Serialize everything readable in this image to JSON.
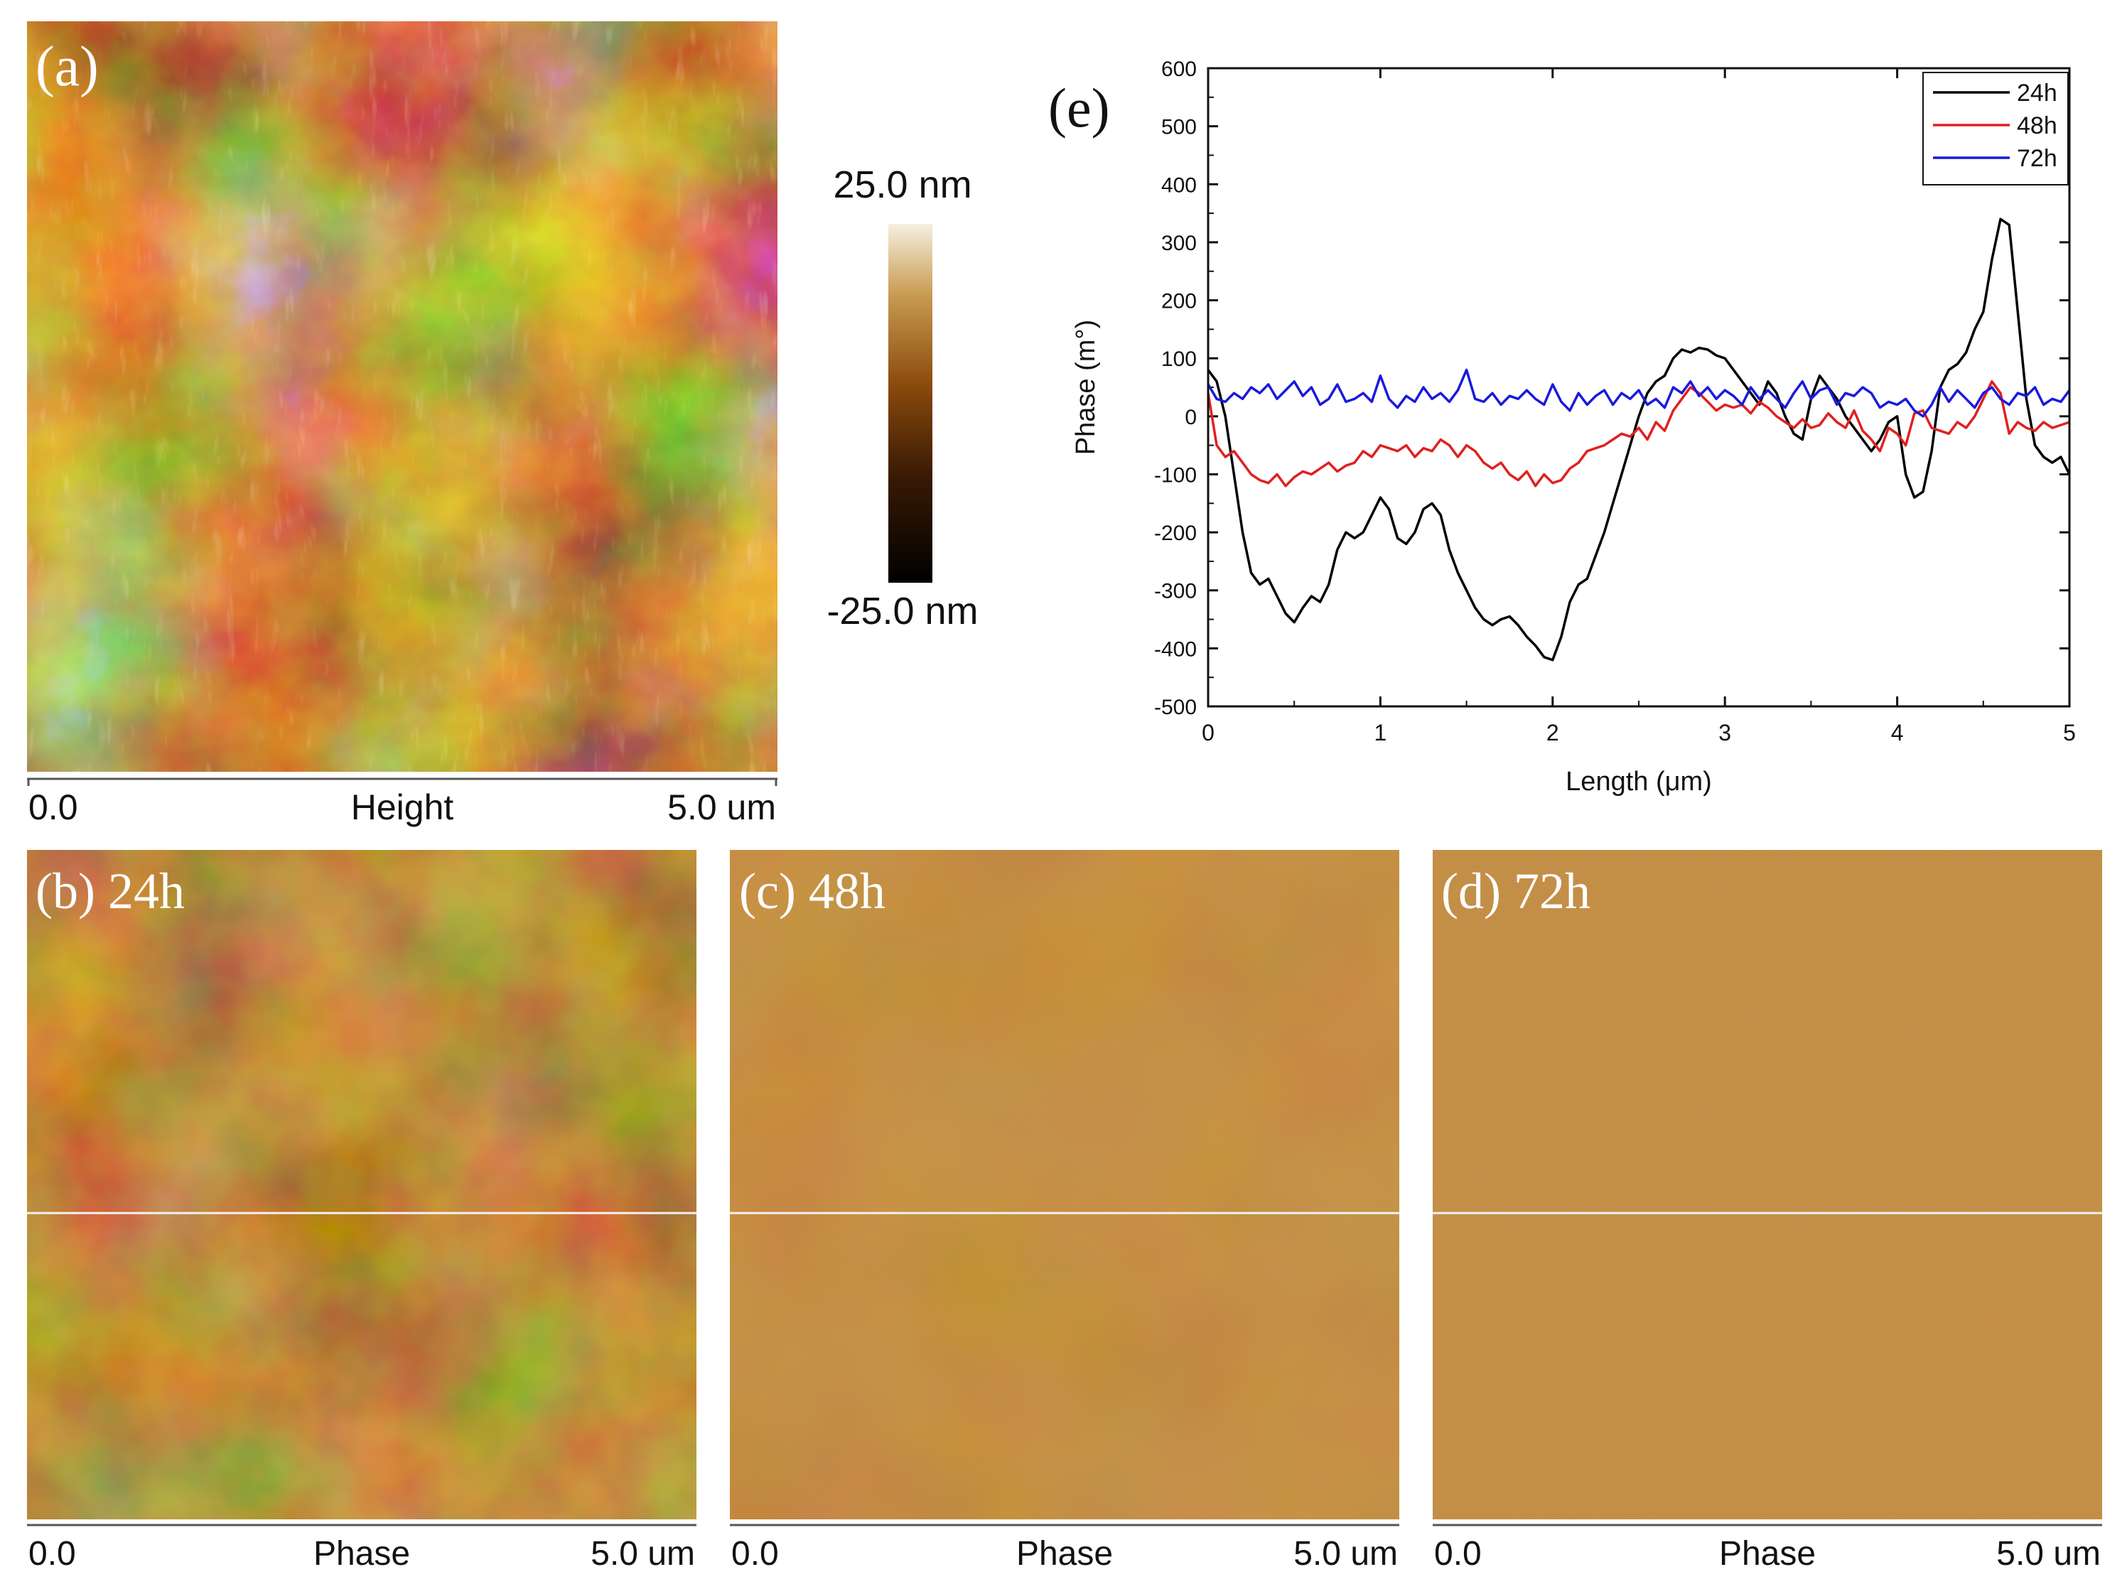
{
  "panel_a": {
    "label": "(a)",
    "scale_left": "0.0",
    "scale_center": "Height",
    "scale_right": "5.0 um"
  },
  "colorbar": {
    "max_label": "25.0 nm",
    "min_label": "-25.0 nm",
    "max_value": 25.0,
    "min_value": -25.0,
    "unit": "nm"
  },
  "panel_b": {
    "label": "(b) 24h",
    "scale_left": "0.0",
    "scale_center": "Phase",
    "scale_right": "5.0 um"
  },
  "panel_c": {
    "label": "(c) 48h",
    "scale_left": "0.0",
    "scale_center": "Phase",
    "scale_right": "5.0 um"
  },
  "panel_d": {
    "label": "(d) 72h",
    "scale_left": "0.0",
    "scale_center": "Phase",
    "scale_right": "5.0 um"
  },
  "colors": {
    "afm_dark": "#1a0c02",
    "afm_mid": "#8a4a0c",
    "afm_light": "#f4ecd8",
    "phase_brown": "#8e4a10",
    "series_24h": "#000000",
    "series_48h": "#e02020",
    "series_72h": "#1a1adc"
  },
  "chart_data": {
    "type": "line",
    "panel_label": "(e)",
    "title": "",
    "xlabel": "Length (μm)",
    "ylabel": "Phase (m°)",
    "xlim": [
      0,
      5
    ],
    "ylim": [
      -500,
      600
    ],
    "xticks": [
      0,
      1,
      2,
      3,
      4,
      5
    ],
    "yticks": [
      -500,
      -400,
      -300,
      -200,
      -100,
      0,
      100,
      200,
      300,
      400,
      500,
      600
    ],
    "legend_position": "top-right",
    "grid": false,
    "series": [
      {
        "name": "24h",
        "color": "#000000",
        "x": [
          0,
          0.05,
          0.1,
          0.15,
          0.2,
          0.25,
          0.3,
          0.35,
          0.4,
          0.45,
          0.5,
          0.55,
          0.6,
          0.65,
          0.7,
          0.75,
          0.8,
          0.85,
          0.9,
          0.95,
          1.0,
          1.05,
          1.1,
          1.15,
          1.2,
          1.25,
          1.3,
          1.35,
          1.4,
          1.45,
          1.5,
          1.55,
          1.6,
          1.65,
          1.7,
          1.75,
          1.8,
          1.85,
          1.9,
          1.95,
          2.0,
          2.05,
          2.1,
          2.15,
          2.2,
          2.25,
          2.3,
          2.35,
          2.4,
          2.45,
          2.5,
          2.55,
          2.6,
          2.65,
          2.7,
          2.75,
          2.8,
          2.85,
          2.9,
          2.95,
          3.0,
          3.05,
          3.1,
          3.15,
          3.2,
          3.25,
          3.3,
          3.35,
          3.4,
          3.45,
          3.5,
          3.55,
          3.6,
          3.65,
          3.7,
          3.75,
          3.8,
          3.85,
          3.9,
          3.95,
          4.0,
          4.05,
          4.1,
          4.15,
          4.2,
          4.25,
          4.3,
          4.35,
          4.4,
          4.45,
          4.5,
          4.55,
          4.6,
          4.65,
          4.7,
          4.75,
          4.8,
          4.85,
          4.9,
          4.95,
          5.0
        ],
        "values": [
          80,
          60,
          0,
          -100,
          -200,
          -270,
          -290,
          -280,
          -310,
          -340,
          -355,
          -330,
          -310,
          -320,
          -290,
          -230,
          -200,
          -210,
          -200,
          -170,
          -140,
          -160,
          -210,
          -220,
          -200,
          -160,
          -150,
          -170,
          -230,
          -270,
          -300,
          -330,
          -350,
          -360,
          -350,
          -345,
          -360,
          -380,
          -395,
          -415,
          -420,
          -380,
          -320,
          -290,
          -280,
          -240,
          -200,
          -150,
          -100,
          -50,
          0,
          40,
          60,
          70,
          100,
          115,
          110,
          118,
          115,
          105,
          100,
          80,
          60,
          40,
          20,
          60,
          40,
          0,
          -30,
          -40,
          30,
          70,
          50,
          30,
          0,
          -20,
          -40,
          -60,
          -40,
          -10,
          0,
          -100,
          -140,
          -130,
          -60,
          50,
          80,
          90,
          110,
          150,
          180,
          270,
          340,
          330,
          180,
          30,
          -50,
          -70,
          -80,
          -70,
          -100
        ]
      },
      {
        "name": "48h",
        "color": "#e02020",
        "x": [
          0,
          0.05,
          0.1,
          0.15,
          0.2,
          0.25,
          0.3,
          0.35,
          0.4,
          0.45,
          0.5,
          0.55,
          0.6,
          0.65,
          0.7,
          0.75,
          0.8,
          0.85,
          0.9,
          0.95,
          1.0,
          1.05,
          1.1,
          1.15,
          1.2,
          1.25,
          1.3,
          1.35,
          1.4,
          1.45,
          1.5,
          1.55,
          1.6,
          1.65,
          1.7,
          1.75,
          1.8,
          1.85,
          1.9,
          1.95,
          2.0,
          2.05,
          2.1,
          2.15,
          2.2,
          2.25,
          2.3,
          2.35,
          2.4,
          2.45,
          2.5,
          2.55,
          2.6,
          2.65,
          2.7,
          2.75,
          2.8,
          2.85,
          2.9,
          2.95,
          3.0,
          3.05,
          3.1,
          3.15,
          3.2,
          3.25,
          3.3,
          3.35,
          3.4,
          3.45,
          3.5,
          3.55,
          3.6,
          3.65,
          3.7,
          3.75,
          3.8,
          3.85,
          3.9,
          3.95,
          4.0,
          4.05,
          4.1,
          4.15,
          4.2,
          4.25,
          4.3,
          4.35,
          4.4,
          4.45,
          4.5,
          4.55,
          4.6,
          4.65,
          4.7,
          4.75,
          4.8,
          4.85,
          4.9,
          4.95,
          5.0
        ],
        "values": [
          40,
          -50,
          -70,
          -60,
          -80,
          -100,
          -110,
          -115,
          -100,
          -120,
          -105,
          -95,
          -100,
          -90,
          -80,
          -95,
          -85,
          -80,
          -60,
          -70,
          -50,
          -55,
          -60,
          -50,
          -70,
          -55,
          -60,
          -40,
          -50,
          -70,
          -50,
          -60,
          -80,
          -90,
          -80,
          -100,
          -110,
          -95,
          -120,
          -100,
          -115,
          -110,
          -90,
          -80,
          -60,
          -55,
          -50,
          -40,
          -30,
          -35,
          -20,
          -40,
          -10,
          -25,
          10,
          30,
          50,
          40,
          25,
          10,
          20,
          15,
          20,
          5,
          25,
          15,
          0,
          -10,
          -20,
          -5,
          -20,
          -15,
          5,
          -10,
          -20,
          10,
          -25,
          -40,
          -60,
          -20,
          -30,
          -50,
          5,
          10,
          -20,
          -25,
          -30,
          -10,
          -20,
          0,
          30,
          60,
          40,
          -30,
          -10,
          -20,
          -25,
          -10,
          -20,
          -15,
          -10
        ]
      },
      {
        "name": "72h",
        "color": "#1a1adc",
        "x": [
          0,
          0.05,
          0.1,
          0.15,
          0.2,
          0.25,
          0.3,
          0.35,
          0.4,
          0.45,
          0.5,
          0.55,
          0.6,
          0.65,
          0.7,
          0.75,
          0.8,
          0.85,
          0.9,
          0.95,
          1.0,
          1.05,
          1.1,
          1.15,
          1.2,
          1.25,
          1.3,
          1.35,
          1.4,
          1.45,
          1.5,
          1.55,
          1.6,
          1.65,
          1.7,
          1.75,
          1.8,
          1.85,
          1.9,
          1.95,
          2.0,
          2.05,
          2.1,
          2.15,
          2.2,
          2.25,
          2.3,
          2.35,
          2.4,
          2.45,
          2.5,
          2.55,
          2.6,
          2.65,
          2.7,
          2.75,
          2.8,
          2.85,
          2.9,
          2.95,
          3.0,
          3.05,
          3.1,
          3.15,
          3.2,
          3.25,
          3.3,
          3.35,
          3.4,
          3.45,
          3.5,
          3.55,
          3.6,
          3.65,
          3.7,
          3.75,
          3.8,
          3.85,
          3.9,
          3.95,
          4.0,
          4.05,
          4.1,
          4.15,
          4.2,
          4.25,
          4.3,
          4.35,
          4.4,
          4.45,
          4.5,
          4.55,
          4.6,
          4.65,
          4.7,
          4.75,
          4.8,
          4.85,
          4.9,
          4.95,
          5.0
        ],
        "values": [
          55,
          30,
          25,
          40,
          30,
          50,
          40,
          55,
          30,
          45,
          60,
          35,
          50,
          20,
          30,
          55,
          25,
          30,
          40,
          25,
          70,
          30,
          15,
          35,
          25,
          50,
          30,
          40,
          25,
          45,
          80,
          30,
          25,
          40,
          20,
          35,
          30,
          45,
          30,
          20,
          55,
          25,
          10,
          40,
          20,
          35,
          45,
          20,
          40,
          30,
          45,
          20,
          30,
          15,
          50,
          40,
          60,
          35,
          50,
          30,
          45,
          35,
          20,
          50,
          30,
          45,
          30,
          15,
          40,
          60,
          30,
          45,
          50,
          20,
          40,
          35,
          50,
          40,
          15,
          25,
          20,
          30,
          10,
          0,
          20,
          50,
          25,
          45,
          30,
          15,
          40,
          50,
          30,
          20,
          40,
          35,
          50,
          20,
          30,
          25,
          45
        ]
      }
    ]
  }
}
